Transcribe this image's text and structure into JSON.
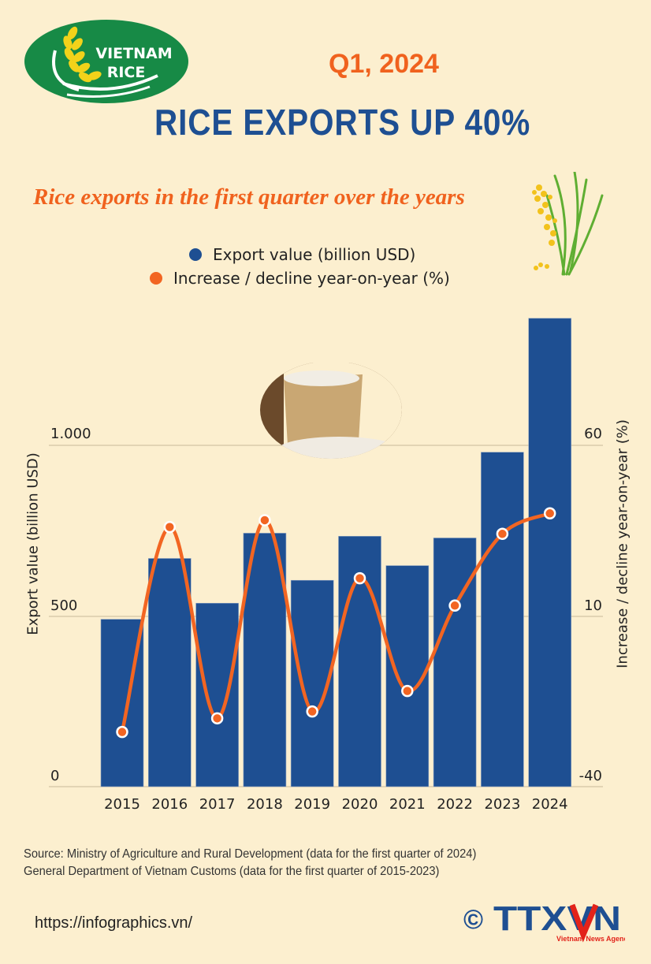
{
  "header": {
    "logo_line1": "VIETNAM",
    "logo_line2": "RICE",
    "period": "Q1, 2024",
    "title": "RICE EXPORTS UP 40%",
    "subtitle": "Rice exports in the first quarter over the years"
  },
  "legend": {
    "items": [
      {
        "label": "Export value (billion USD)",
        "color": "#1e4f92"
      },
      {
        "label": "Increase / decline year-on-year (%)",
        "color": "#f26522"
      }
    ]
  },
  "colors": {
    "background": "#fcefcf",
    "bar": "#1e4f92",
    "line": "#f26522",
    "gridline": "#c9b99a",
    "title_orange": "#f0621e",
    "title_blue": "#1e4f92"
  },
  "chart_data": {
    "type": "bar",
    "title": "Rice exports in the first quarter over the years",
    "categories": [
      "2015",
      "2016",
      "2017",
      "2018",
      "2019",
      "2020",
      "2021",
      "2022",
      "2023",
      "2024"
    ],
    "series": [
      {
        "name": "Export value (billion USD)",
        "type": "bar",
        "axis": "left",
        "values": [
          490,
          668,
          537,
          742,
          604,
          733,
          647,
          728,
          979,
          1371
        ]
      },
      {
        "name": "Increase / decline year-on-year (%)",
        "type": "line",
        "axis": "right",
        "values": [
          -24,
          36,
          -20,
          38,
          -18,
          21,
          -12,
          13,
          34,
          40
        ]
      }
    ],
    "xlabel": "",
    "ylabel": "Export value (billion USD)",
    "ylabel_right": "Increase / decline year-on-year (%)",
    "ylim": [
      0,
      1400
    ],
    "ylim_right": [
      -40,
      82
    ],
    "yticks": [
      "0",
      "500",
      "1.000"
    ],
    "yticks_right": [
      "-40",
      "10",
      "60"
    ],
    "grid": true,
    "legend_position": "top"
  },
  "footer": {
    "source_line1": "Source: Ministry of Agriculture and Rural Development (data for the first quarter of 2024)",
    "source_line2": "General Department of Vietnam Customs (data for the first quarter of 2015-2023)",
    "url": "https://infographics.vn/",
    "copyright": "©",
    "agency": "TTXVN",
    "agency_sub": "Vietnam News Agency"
  }
}
